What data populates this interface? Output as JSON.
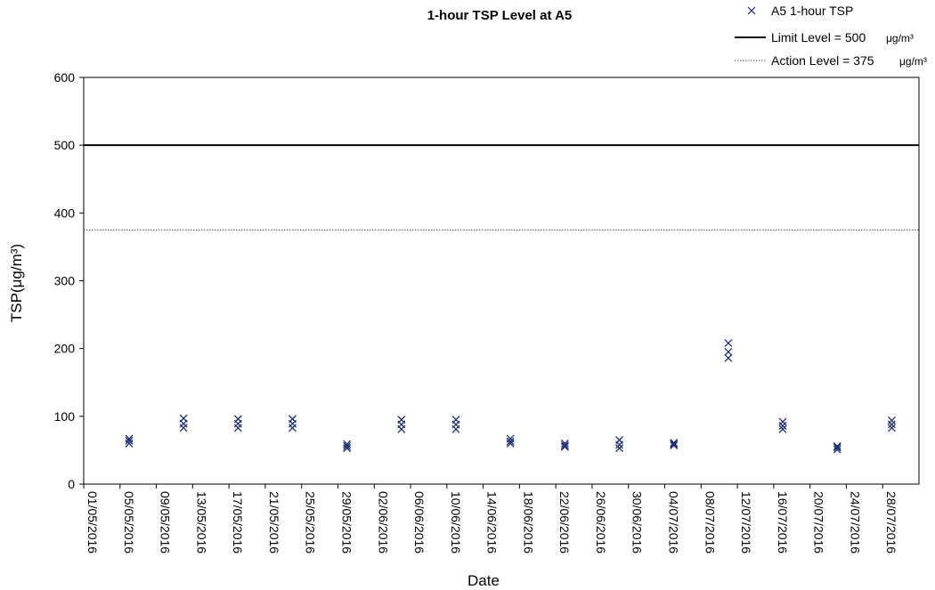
{
  "chart_data": {
    "type": "scatter",
    "title": "1-hour TSP Level at A5",
    "xlabel": "Date",
    "ylabel": "TSP(μg/m³)",
    "ylim": [
      0,
      600
    ],
    "yticks": [
      0,
      100,
      200,
      300,
      400,
      500,
      600
    ],
    "xlim": [
      "01/05/2016",
      "01/08/2016"
    ],
    "xticks": [
      "01/05/2016",
      "05/05/2016",
      "09/05/2016",
      "13/05/2016",
      "17/05/2016",
      "21/05/2016",
      "25/05/2016",
      "29/05/2016",
      "02/06/2016",
      "06/06/2016",
      "10/06/2016",
      "14/06/2016",
      "18/06/2016",
      "22/06/2016",
      "26/06/2016",
      "30/06/2016",
      "04/07/2016",
      "08/07/2016",
      "12/07/2016",
      "16/07/2016",
      "20/07/2016",
      "24/07/2016",
      "28/07/2016"
    ],
    "grid": false,
    "legend_position": "top-right",
    "series": [
      {
        "name": "A5 1-hour TSP",
        "color": "#1f2f6e",
        "marker": "x",
        "points": [
          {
            "x": "06/05/2016",
            "y": 67
          },
          {
            "x": "06/05/2016",
            "y": 64
          },
          {
            "x": "06/05/2016",
            "y": 60
          },
          {
            "x": "12/05/2016",
            "y": 97
          },
          {
            "x": "12/05/2016",
            "y": 89
          },
          {
            "x": "12/05/2016",
            "y": 83
          },
          {
            "x": "18/05/2016",
            "y": 96
          },
          {
            "x": "18/05/2016",
            "y": 89
          },
          {
            "x": "18/05/2016",
            "y": 83
          },
          {
            "x": "24/05/2016",
            "y": 96
          },
          {
            "x": "24/05/2016",
            "y": 89
          },
          {
            "x": "24/05/2016",
            "y": 83
          },
          {
            "x": "30/05/2016",
            "y": 59
          },
          {
            "x": "30/05/2016",
            "y": 56
          },
          {
            "x": "30/05/2016",
            "y": 53
          },
          {
            "x": "05/06/2016",
            "y": 95
          },
          {
            "x": "05/06/2016",
            "y": 88
          },
          {
            "x": "05/06/2016",
            "y": 81
          },
          {
            "x": "11/06/2016",
            "y": 95
          },
          {
            "x": "11/06/2016",
            "y": 88
          },
          {
            "x": "11/06/2016",
            "y": 81
          },
          {
            "x": "17/06/2016",
            "y": 67
          },
          {
            "x": "17/06/2016",
            "y": 63
          },
          {
            "x": "17/06/2016",
            "y": 60
          },
          {
            "x": "23/06/2016",
            "y": 60
          },
          {
            "x": "23/06/2016",
            "y": 57
          },
          {
            "x": "23/06/2016",
            "y": 55
          },
          {
            "x": "29/06/2016",
            "y": 65
          },
          {
            "x": "29/06/2016",
            "y": 58
          },
          {
            "x": "29/06/2016",
            "y": 53
          },
          {
            "x": "05/07/2016",
            "y": 61
          },
          {
            "x": "05/07/2016",
            "y": 59
          },
          {
            "x": "05/07/2016",
            "y": 57
          },
          {
            "x": "11/07/2016",
            "y": 208
          },
          {
            "x": "11/07/2016",
            "y": 195
          },
          {
            "x": "11/07/2016",
            "y": 186
          },
          {
            "x": "17/07/2016",
            "y": 92
          },
          {
            "x": "17/07/2016",
            "y": 86
          },
          {
            "x": "17/07/2016",
            "y": 81
          },
          {
            "x": "23/07/2016",
            "y": 56
          },
          {
            "x": "23/07/2016",
            "y": 54
          },
          {
            "x": "23/07/2016",
            "y": 51
          },
          {
            "x": "29/07/2016",
            "y": 94
          },
          {
            "x": "29/07/2016",
            "y": 88
          },
          {
            "x": "29/07/2016",
            "y": 83
          }
        ]
      }
    ],
    "reference_lines": [
      {
        "name": "Limit Level = 500",
        "unit": "μg/m³",
        "y": 500,
        "style": "solid",
        "color": "#000000"
      },
      {
        "name": "Action Level = 375",
        "unit": "μg/m³",
        "y": 375,
        "style": "dotted",
        "color": "#555555"
      }
    ]
  }
}
